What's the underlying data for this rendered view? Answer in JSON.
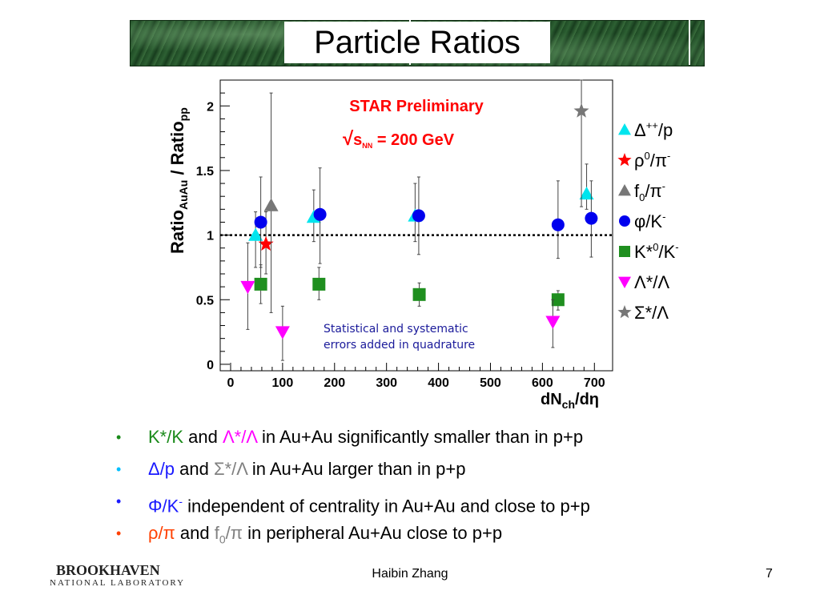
{
  "slide": {
    "title": "Particle Ratios",
    "footer_author": "Haibin Zhang",
    "page_number": "7",
    "logo_line1": "BROOKHAVEN",
    "logo_line2": "NATIONAL LABORATORY"
  },
  "bullets": [
    {
      "parts": [
        {
          "text": "K*/K",
          "color": "green"
        },
        {
          "text": " and ",
          "color": ""
        },
        {
          "text": "Λ*/Λ",
          "color": "magenta"
        },
        {
          "text": " in Au+Au significantly smaller than in p+p",
          "color": ""
        }
      ]
    },
    {
      "parts": [
        {
          "text": "Δ/p",
          "color": "blue"
        },
        {
          "text": " and ",
          "color": ""
        },
        {
          "text": "Σ*/Λ",
          "color": "gray"
        },
        {
          "text": " in Au+Au larger than in p+p",
          "color": ""
        }
      ]
    },
    {
      "parts": [
        {
          "text": "Φ/K",
          "color": "blue"
        },
        {
          "text": "-",
          "color": "blue",
          "sup": true
        },
        {
          "text": " independent of centrality in Au+Au and close to p+p",
          "color": ""
        }
      ]
    },
    {
      "parts": [
        {
          "text": "ρ/π",
          "color": "red"
        },
        {
          "text": " and ",
          "color": ""
        },
        {
          "text": "f",
          "color": "gray"
        },
        {
          "text": "0",
          "color": "gray",
          "sub": true
        },
        {
          "text": "/π",
          "color": "gray"
        },
        {
          "text": " in peripheral Au+Au close to p+p",
          "color": ""
        }
      ]
    }
  ],
  "chart_data": {
    "type": "scatter",
    "title": "STAR Preliminary",
    "subtitle_parts": {
      "root": "√",
      "s": "s",
      "nn": "NN",
      "rest": " = 200 GeV"
    },
    "annotation": [
      "Statistical and systematic",
      "errors added in quadrature"
    ],
    "xlabel_parts": {
      "main": "dN",
      "sub": "ch",
      "rest": "/dη"
    },
    "ylabel_parts": {
      "a": "Ratio",
      "a_sub": "AuAu",
      "mid": " / Ratio",
      "b_sub": "pp"
    },
    "xlim": [
      -20,
      735
    ],
    "ylim": [
      -0.05,
      2.2
    ],
    "x_ticks": [
      0,
      100,
      200,
      300,
      400,
      500,
      600,
      700
    ],
    "y_ticks": [
      0,
      0.5,
      1,
      1.5,
      2
    ],
    "y_tick_labels": [
      "0",
      "0.5",
      "1",
      "1.5",
      "2"
    ],
    "reference_line": 1,
    "grid": false,
    "legend_position": "right",
    "colors": {
      "delta": "#00e5ee",
      "rho": "#ff0000",
      "f0": "#777777",
      "phi": "#0000ee",
      "kstar": "#1f8f1f",
      "lambda": "#ff00ff",
      "sigma": "#777777",
      "title": "#ff0000",
      "annotation": "#1a1a9a"
    },
    "series": [
      {
        "key": "delta",
        "marker": "triangle-up",
        "color": "#00e5ee",
        "legend_parts": {
          "main": "Δ",
          "sup": "++",
          "rest": "/p"
        },
        "points": [
          {
            "x": 48,
            "y": 1.0,
            "lo": 0.75,
            "hi": 1.18
          },
          {
            "x": 160,
            "y": 1.14,
            "lo": 0.95,
            "hi": 1.35
          },
          {
            "x": 355,
            "y": 1.15,
            "lo": 0.95,
            "hi": 1.4
          },
          {
            "x": 685,
            "y": 1.32,
            "lo": 1.2,
            "hi": 1.55
          }
        ]
      },
      {
        "key": "rho",
        "marker": "star",
        "color": "#ff0000",
        "legend_parts": {
          "main": "ρ",
          "sup": "0",
          "rest": "/π",
          "sup2": "-"
        },
        "points": [
          {
            "x": 68,
            "y": 0.93,
            "lo": 0.7,
            "hi": 1.18
          }
        ]
      },
      {
        "key": "f0",
        "marker": "triangle-up",
        "color": "#777777",
        "legend_parts": {
          "main": "f",
          "sub": "0",
          "rest": "/π",
          "sup2": "-"
        },
        "points": [
          {
            "x": 78,
            "y": 1.23,
            "lo": 0.4,
            "hi": 2.1
          }
        ]
      },
      {
        "key": "phi",
        "marker": "circle",
        "color": "#0000ee",
        "legend_parts": {
          "main": "φ",
          "rest": "/K",
          "sup2": "-"
        },
        "points": [
          {
            "x": 58,
            "y": 1.1,
            "lo": 0.75,
            "hi": 1.45
          },
          {
            "x": 172,
            "y": 1.16,
            "lo": 0.78,
            "hi": 1.52
          },
          {
            "x": 362,
            "y": 1.15,
            "lo": 0.85,
            "hi": 1.45
          },
          {
            "x": 630,
            "y": 1.08,
            "lo": 0.82,
            "hi": 1.42
          },
          {
            "x": 694,
            "y": 1.13,
            "lo": 0.83,
            "hi": 1.42
          }
        ]
      },
      {
        "key": "kstar",
        "marker": "square",
        "color": "#1f8f1f",
        "legend_parts": {
          "main": "K*",
          "sup": "0",
          "rest": "/K",
          "sup2": "-"
        },
        "points": [
          {
            "x": 58,
            "y": 0.62,
            "lo": 0.47,
            "hi": 0.77
          },
          {
            "x": 170,
            "y": 0.62,
            "lo": 0.5,
            "hi": 0.75
          },
          {
            "x": 363,
            "y": 0.54,
            "lo": 0.45,
            "hi": 0.63
          },
          {
            "x": 630,
            "y": 0.5,
            "lo": 0.42,
            "hi": 0.57
          }
        ]
      },
      {
        "key": "lambda",
        "marker": "triangle-down",
        "color": "#ff00ff",
        "legend_parts": {
          "main": "Λ*/Λ"
        },
        "points": [
          {
            "x": 33,
            "y": 0.6,
            "lo": 0.27,
            "hi": 0.94
          },
          {
            "x": 100,
            "y": 0.25,
            "lo": 0.03,
            "hi": 0.45
          },
          {
            "x": 620,
            "y": 0.33,
            "lo": 0.13,
            "hi": 0.5
          }
        ]
      },
      {
        "key": "sigma",
        "marker": "star",
        "color": "#777777",
        "legend_parts": {
          "main": "Σ*/Λ"
        },
        "points": [
          {
            "x": 675,
            "y": 1.96,
            "lo": 1.22,
            "hi": 2.2
          }
        ]
      }
    ]
  }
}
